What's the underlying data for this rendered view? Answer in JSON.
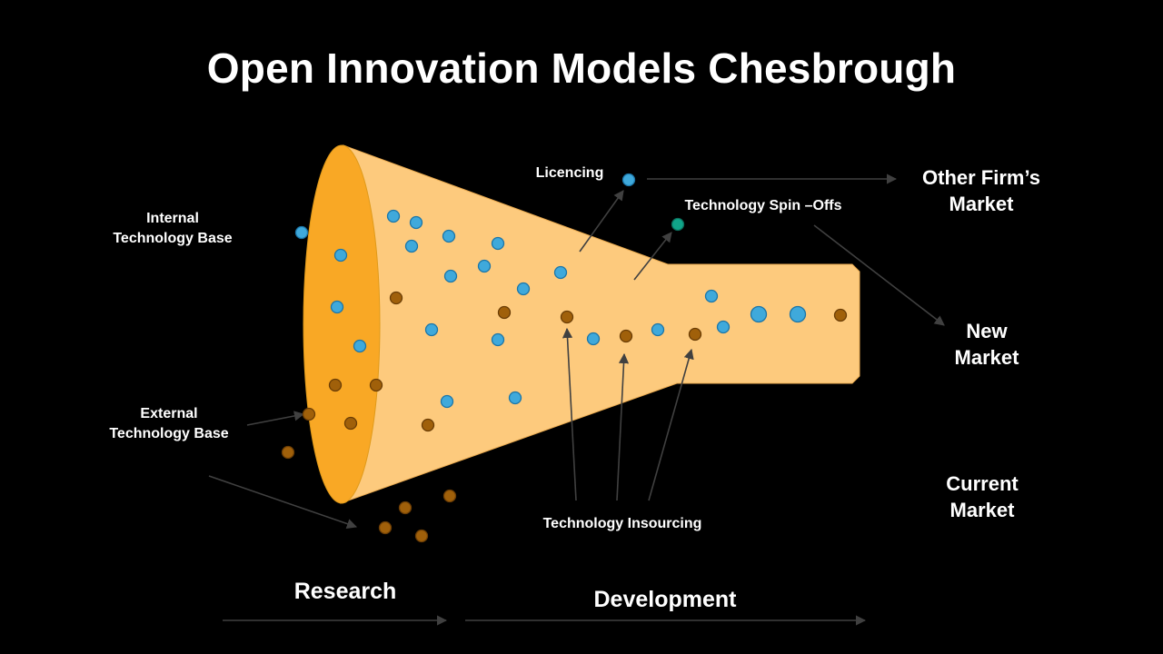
{
  "title": "Open Innovation Models Chesbrough",
  "labels": {
    "internal": [
      "Internal",
      "Technology Base"
    ],
    "external": [
      "External",
      "Technology Base"
    ],
    "licencing": "Licencing",
    "spin_offs": "Technology Spin –Offs",
    "insourcing": "Technology Insourcing",
    "other_market": [
      "Other Firm’s",
      "Market"
    ],
    "new_market": [
      "New",
      "Market"
    ],
    "current_market": [
      "Current",
      "Market"
    ],
    "research": "Research",
    "development": "Development"
  },
  "colors": {
    "background": "#000000",
    "funnel_body": "#FDCA7D",
    "funnel_mouth": "#F9A825",
    "blue_dot": "#3FA9DB",
    "brown_dot": "#A0600A",
    "teal_dot": "#10A589",
    "arrow": "#404040"
  }
}
